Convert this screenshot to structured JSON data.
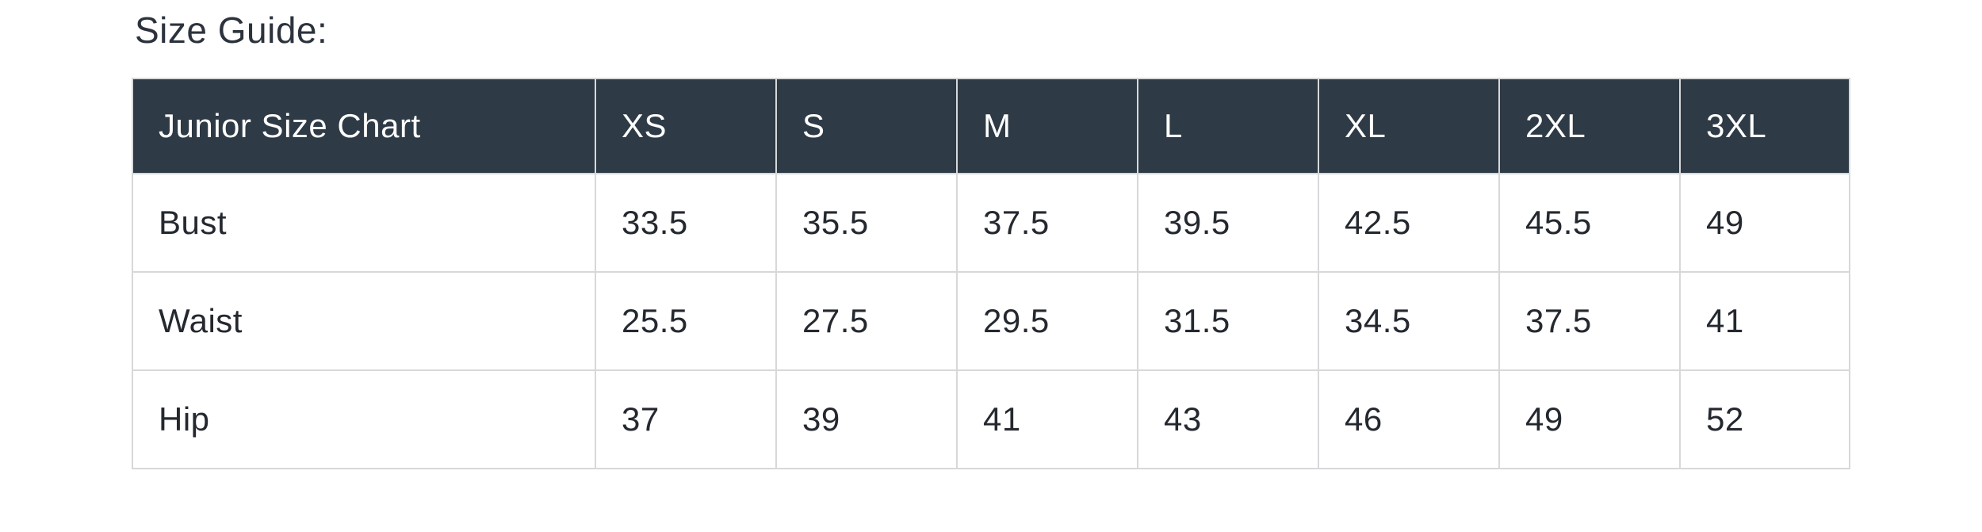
{
  "page": {
    "title": "Size Guide:"
  },
  "colors": {
    "header_bg": "#2e3a45",
    "header_text": "#ffffff",
    "body_text": "#24282f",
    "title_text": "#2c333d",
    "border": "#d6d8da",
    "page_bg": "#ffffff"
  },
  "table": {
    "header": [
      "Junior Size Chart",
      "XS",
      "S",
      "M",
      "L",
      "XL",
      "2XL",
      "3XL"
    ],
    "rows": [
      {
        "label": "Bust",
        "values": [
          "33.5",
          "35.5",
          "37.5",
          "39.5",
          "42.5",
          "45.5",
          "49"
        ]
      },
      {
        "label": "Waist",
        "values": [
          "25.5",
          "27.5",
          "29.5",
          "31.5",
          "34.5",
          "37.5",
          "41"
        ]
      },
      {
        "label": "Hip",
        "values": [
          "37",
          "39",
          "41",
          "43",
          "46",
          "49",
          "52"
        ]
      }
    ]
  }
}
